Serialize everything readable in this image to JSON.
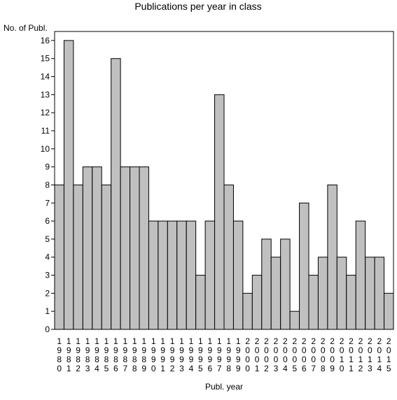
{
  "chart_data": {
    "type": "bar",
    "title": "Publications per year in class",
    "ylabel": "No. of Publ.",
    "xlabel": "Publ. year",
    "ylim": [
      0,
      16.5
    ],
    "yticks": [
      0,
      1,
      2,
      3,
      4,
      5,
      6,
      7,
      8,
      9,
      10,
      11,
      12,
      13,
      14,
      15,
      16
    ],
    "grid": false,
    "bar_color": "#c0c0c0",
    "bar_edge_color": "#000000",
    "categories": [
      "1980",
      "1981",
      "1982",
      "1983",
      "1984",
      "1985",
      "1986",
      "1987",
      "1988",
      "1989",
      "1990",
      "1991",
      "1992",
      "1993",
      "1994",
      "1995",
      "1996",
      "1997",
      "1998",
      "1999",
      "2000",
      "2001",
      "2002",
      "2003",
      "2004",
      "2005",
      "2006",
      "2007",
      "2008",
      "2009",
      "2010",
      "2011",
      "2012",
      "2013",
      "2014",
      "2015"
    ],
    "values": [
      8,
      16,
      8,
      9,
      9,
      8,
      15,
      9,
      9,
      9,
      6,
      6,
      6,
      6,
      6,
      3,
      6,
      13,
      8,
      6,
      2,
      3,
      5,
      4,
      5,
      1,
      7,
      3,
      4,
      8,
      4,
      3,
      6,
      4,
      4,
      2
    ]
  }
}
